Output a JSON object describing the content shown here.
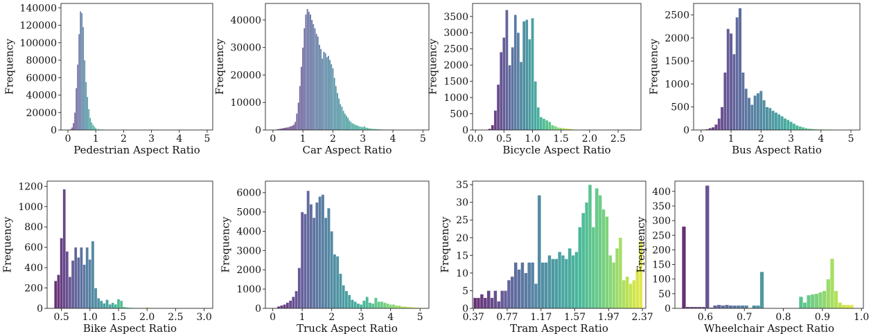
{
  "chart_data": [
    {
      "type": "bar",
      "xlabel": "Pedestrian Aspect Ratio",
      "ylabel": "Frequency",
      "xlim": [
        -0.25,
        5.2
      ],
      "ylim": [
        0,
        145000
      ],
      "xticks": [
        0,
        1,
        2,
        3,
        4,
        5
      ],
      "xtick_labels": [
        "0",
        "1",
        "2",
        "3",
        "4",
        "5"
      ],
      "yticks": [
        0,
        20000,
        40000,
        60000,
        80000,
        100000,
        120000,
        140000
      ],
      "ytick_labels": [
        "0",
        "20000",
        "40000",
        "60000",
        "80000",
        "100000",
        "120000",
        "140000"
      ],
      "x": [
        0.05,
        0.1,
        0.15,
        0.2,
        0.25,
        0.3,
        0.35,
        0.4,
        0.45,
        0.5,
        0.55,
        0.6,
        0.65,
        0.7,
        0.75,
        0.8,
        0.85,
        0.9,
        0.95,
        1.0,
        1.1,
        1.2,
        1.3,
        1.4,
        1.5
      ],
      "bin_width": 0.05,
      "values": [
        300,
        1000,
        3000,
        8000,
        20000,
        48000,
        75000,
        110000,
        136000,
        134000,
        118000,
        80000,
        55000,
        38000,
        24000,
        14000,
        9000,
        6000,
        4000,
        2500,
        1500,
        900,
        500,
        300,
        200
      ],
      "colormap": "viridis"
    },
    {
      "type": "bar",
      "xlabel": "Car Aspect Ratio",
      "ylabel": "Frequency",
      "xlim": [
        -0.25,
        5.2
      ],
      "ylim": [
        0,
        46000
      ],
      "xticks": [
        0,
        1,
        2,
        3,
        4,
        5
      ],
      "xtick_labels": [
        "0",
        "1",
        "2",
        "3",
        "4",
        "5"
      ],
      "yticks": [
        0,
        10000,
        20000,
        30000,
        40000
      ],
      "ytick_labels": [
        "0",
        "10000",
        "20000",
        "30000",
        "40000"
      ],
      "x": [
        0.05,
        0.1,
        0.15,
        0.2,
        0.25,
        0.3,
        0.35,
        0.4,
        0.45,
        0.5,
        0.55,
        0.6,
        0.65,
        0.7,
        0.75,
        0.8,
        0.85,
        0.9,
        0.95,
        1.0,
        1.05,
        1.1,
        1.15,
        1.2,
        1.25,
        1.3,
        1.35,
        1.4,
        1.45,
        1.5,
        1.55,
        1.6,
        1.65,
        1.7,
        1.75,
        1.8,
        1.85,
        1.9,
        1.95,
        2.0,
        2.05,
        2.1,
        2.15,
        2.2,
        2.25,
        2.3,
        2.35,
        2.4,
        2.45,
        2.5,
        2.55,
        2.6,
        2.65,
        2.7,
        2.75,
        2.8,
        2.85,
        2.9,
        2.95,
        3.0,
        3.05,
        3.1,
        3.15,
        3.2,
        3.25,
        3.3,
        3.35,
        3.4,
        3.45,
        3.5,
        3.55,
        3.6,
        3.65,
        3.7,
        3.75,
        3.8,
        3.85,
        3.9,
        3.95,
        4.0,
        4.05,
        4.1,
        4.15,
        4.2,
        4.25,
        4.3,
        4.35,
        4.4,
        4.45,
        4.5,
        4.55,
        4.6,
        4.65,
        4.7,
        4.75,
        4.8,
        4.85,
        4.9,
        4.95
      ],
      "bin_width": 0.05,
      "values": [
        100,
        200,
        300,
        400,
        500,
        600,
        700,
        800,
        900,
        1000,
        1200,
        1400,
        1600,
        2000,
        3000,
        6000,
        10000,
        16000,
        23000,
        30000,
        37000,
        42000,
        44000,
        43000,
        42000,
        40000,
        38500,
        37000,
        35000,
        34000,
        31000,
        29500,
        26000,
        28500,
        28000,
        26500,
        27000,
        25500,
        24000,
        22500,
        19000,
        16000,
        13500,
        11500,
        9500,
        8500,
        7000,
        6000,
        5200,
        4500,
        3500,
        3000,
        2500,
        2200,
        1900,
        1700,
        1500,
        1300,
        1200,
        1100,
        1400,
        900,
        800,
        700,
        600,
        500,
        450,
        400,
        350,
        300,
        280,
        260,
        240,
        220,
        200,
        180,
        160,
        150,
        140,
        130,
        120,
        110,
        100,
        90,
        80,
        70,
        60,
        50,
        40,
        30,
        30,
        30,
        20,
        20,
        20,
        20,
        10,
        10,
        10
      ],
      "colormap": "viridis"
    },
    {
      "type": "bar",
      "xlabel": "Bicycle Aspect Ratio",
      "ylabel": "Frequency",
      "xlim": [
        -0.05,
        2.9
      ],
      "ylim": [
        0,
        3900
      ],
      "xticks": [
        0.0,
        0.5,
        1.0,
        1.5,
        2.0,
        2.5
      ],
      "xtick_labels": [
        "0.0",
        "0.5",
        "1.0",
        "1.5",
        "2.0",
        "2.5"
      ],
      "yticks": [
        0,
        500,
        1000,
        1500,
        2000,
        2500,
        3000,
        3500
      ],
      "ytick_labels": [
        "0",
        "500",
        "1000",
        "1500",
        "2000",
        "2500",
        "3000",
        "3500"
      ],
      "x": [
        0.25,
        0.3,
        0.35,
        0.4,
        0.45,
        0.5,
        0.55,
        0.6,
        0.65,
        0.7,
        0.75,
        0.8,
        0.85,
        0.9,
        0.95,
        1.0,
        1.05,
        1.1,
        1.15,
        1.2,
        1.25,
        1.3,
        1.35,
        1.4,
        1.45,
        1.5,
        1.55,
        1.6,
        1.65,
        1.7
      ],
      "bin_width": 0.05,
      "values": [
        40,
        150,
        600,
        1400,
        2400,
        2850,
        3700,
        2000,
        2550,
        3550,
        3000,
        2100,
        3350,
        3400,
        2800,
        3450,
        1500,
        700,
        400,
        350,
        300,
        250,
        150,
        120,
        80,
        70,
        60,
        50,
        40,
        30
      ],
      "colormap": "viridis"
    },
    {
      "type": "bar",
      "xlabel": "Bus Aspect Ratio",
      "ylabel": "Frequency",
      "xlim": [
        -0.25,
        5.3
      ],
      "ylim": [
        0,
        2750
      ],
      "xticks": [
        0,
        1,
        2,
        3,
        4,
        5
      ],
      "xtick_labels": [
        "0",
        "1",
        "2",
        "3",
        "4",
        "5"
      ],
      "yticks": [
        0,
        500,
        1000,
        1500,
        2000,
        2500
      ],
      "ytick_labels": [
        "0",
        "500",
        "1000",
        "1500",
        "2000",
        "2500"
      ],
      "x": [
        0.1,
        0.2,
        0.3,
        0.4,
        0.5,
        0.6,
        0.7,
        0.8,
        0.9,
        1.0,
        1.1,
        1.2,
        1.3,
        1.4,
        1.5,
        1.6,
        1.7,
        1.8,
        1.9,
        2.0,
        2.1,
        2.2,
        2.3,
        2.4,
        2.5,
        2.6,
        2.7,
        2.8,
        2.9,
        3.0,
        3.1,
        3.2,
        3.3,
        3.4,
        3.5,
        3.6,
        3.7,
        3.8,
        3.9,
        4.0,
        4.1,
        4.2,
        4.3,
        4.4,
        4.5,
        4.6,
        4.7,
        4.8,
        4.9,
        5.0
      ],
      "bin_width": 0.1,
      "values": [
        10,
        20,
        40,
        60,
        120,
        250,
        500,
        1250,
        2200,
        2100,
        1650,
        2450,
        2650,
        1250,
        900,
        700,
        550,
        750,
        800,
        850,
        650,
        500,
        480,
        420,
        380,
        340,
        300,
        250,
        220,
        180,
        140,
        100,
        80,
        60,
        40,
        30,
        25,
        20,
        15,
        15,
        10,
        10,
        10,
        8,
        6,
        5,
        4,
        3,
        2,
        1
      ],
      "colormap": "viridis"
    },
    {
      "type": "bar",
      "xlabel": "Bike Aspect Ratio",
      "ylabel": "Frequency",
      "xlim": [
        0.25,
        3.15
      ],
      "ylim": [
        0,
        1250
      ],
      "xticks": [
        0.5,
        1.0,
        1.5,
        2.0,
        2.5,
        3.0
      ],
      "xtick_labels": [
        "0.5",
        "1.0",
        "1.5",
        "2.0",
        "2.5",
        "3.0"
      ],
      "yticks": [
        0,
        200,
        400,
        600,
        800,
        1000,
        1200
      ],
      "ytick_labels": [
        "0",
        "200",
        "400",
        "600",
        "800",
        "1000",
        "1200"
      ],
      "x": [
        0.4,
        0.45,
        0.5,
        0.55,
        0.6,
        0.65,
        0.7,
        0.75,
        0.8,
        0.85,
        0.9,
        0.95,
        1.0,
        1.05,
        1.1,
        1.15,
        1.2,
        1.25,
        1.3,
        1.35,
        1.4,
        1.45,
        1.5,
        1.55,
        1.6,
        1.65,
        1.7,
        1.75,
        1.8,
        1.85,
        1.9,
        1.95,
        2.0,
        2.05,
        2.1
      ],
      "bin_width": 0.05,
      "values": [
        270,
        330,
        690,
        1170,
        560,
        310,
        470,
        600,
        500,
        600,
        430,
        600,
        480,
        660,
        200,
        100,
        75,
        50,
        85,
        40,
        55,
        40,
        90,
        75,
        15,
        10,
        8,
        6,
        5,
        4,
        3,
        5,
        10,
        5,
        2
      ],
      "colormap": "viridis"
    },
    {
      "type": "bar",
      "xlabel": "Truck Aspect Ratio",
      "ylabel": "Frequency",
      "xlim": [
        -0.25,
        5.3
      ],
      "ylim": [
        0,
        6600
      ],
      "xticks": [
        0,
        1,
        2,
        3,
        4,
        5
      ],
      "xtick_labels": [
        "0",
        "1",
        "2",
        "3",
        "4",
        "5"
      ],
      "yticks": [
        0,
        1000,
        2000,
        3000,
        4000,
        5000,
        6000
      ],
      "ytick_labels": [
        "0",
        "1000",
        "2000",
        "3000",
        "4000",
        "5000",
        "6000"
      ],
      "x": [
        0.1,
        0.2,
        0.3,
        0.4,
        0.5,
        0.6,
        0.7,
        0.8,
        0.9,
        1.0,
        1.1,
        1.2,
        1.3,
        1.4,
        1.5,
        1.6,
        1.7,
        1.8,
        1.9,
        2.0,
        2.1,
        2.2,
        2.3,
        2.4,
        2.5,
        2.6,
        2.7,
        2.8,
        2.9,
        3.0,
        3.1,
        3.2,
        3.3,
        3.4,
        3.5,
        3.6,
        3.7,
        3.8,
        3.9,
        4.0,
        4.1,
        4.2,
        4.3,
        4.4,
        4.5,
        4.6,
        4.7,
        4.8,
        4.9
      ],
      "bin_width": 0.1,
      "values": [
        10,
        100,
        150,
        200,
        300,
        400,
        600,
        900,
        2100,
        5000,
        4900,
        6100,
        5400,
        4700,
        5500,
        5800,
        5900,
        4700,
        5200,
        4000,
        2800,
        2700,
        1800,
        1200,
        900,
        700,
        450,
        350,
        250,
        200,
        400,
        600,
        300,
        250,
        550,
        350,
        350,
        300,
        250,
        200,
        200,
        150,
        150,
        100,
        100,
        80,
        60,
        50,
        40
      ],
      "colormap": "viridis"
    },
    {
      "type": "bar",
      "xlabel": "Tram Aspect Ratio",
      "ylabel": "Frequency",
      "xlim": [
        0.36,
        2.41
      ],
      "ylim": [
        0,
        36
      ],
      "xticks": [
        0.37,
        0.77,
        1.17,
        1.57,
        1.97,
        2.37
      ],
      "xtick_labels": [
        "0.37",
        "0.77",
        "1.17",
        "1.57",
        "1.97",
        "2.37"
      ],
      "yticks": [
        0,
        5,
        10,
        15,
        20,
        25,
        30,
        35
      ],
      "ytick_labels": [
        "0",
        "5",
        "10",
        "15",
        "20",
        "25",
        "30",
        "35"
      ],
      "x": [
        0.39,
        0.43,
        0.47,
        0.51,
        0.55,
        0.59,
        0.63,
        0.67,
        0.71,
        0.75,
        0.79,
        0.83,
        0.87,
        0.91,
        0.95,
        0.99,
        1.03,
        1.07,
        1.11,
        1.15,
        1.19,
        1.23,
        1.27,
        1.31,
        1.35,
        1.39,
        1.43,
        1.47,
        1.51,
        1.55,
        1.59,
        1.63,
        1.67,
        1.71,
        1.75,
        1.79,
        1.83,
        1.87,
        1.91,
        1.95,
        1.99,
        2.03,
        2.07,
        2.11,
        2.15,
        2.19,
        2.23,
        2.27,
        2.31,
        2.35
      ],
      "bin_width": 0.04,
      "values": [
        3,
        3,
        4,
        3,
        5,
        3,
        5,
        2,
        5,
        5,
        8,
        9,
        13,
        11,
        13,
        10,
        13,
        13,
        7,
        32,
        13,
        13,
        15,
        14,
        14,
        16,
        15,
        14,
        17,
        15,
        16,
        23,
        27,
        30,
        35,
        23,
        34,
        32,
        28,
        26,
        15,
        13,
        17,
        20,
        8,
        9,
        7,
        8,
        11,
        19
      ],
      "colormap": "viridis"
    },
    {
      "type": "bar",
      "xlabel": "Wheelchair Aspect Ratio",
      "ylabel": "Frequency",
      "xlim": [
        0.522,
        1.005
      ],
      "ylim": [
        0,
        435
      ],
      "xticks": [
        0.6,
        0.7,
        0.8,
        0.9,
        1.0
      ],
      "xtick_labels": [
        "0.6",
        "0.7",
        "0.8",
        "0.9",
        "1.0"
      ],
      "yticks": [
        0,
        50,
        100,
        150,
        200,
        250,
        300,
        350,
        400
      ],
      "ytick_labels": [
        "0",
        "50",
        "100",
        "150",
        "200",
        "250",
        "300",
        "350",
        "400"
      ],
      "x": [
        0.545,
        0.555,
        0.565,
        0.575,
        0.585,
        0.595,
        0.605,
        0.615,
        0.625,
        0.635,
        0.645,
        0.655,
        0.665,
        0.675,
        0.685,
        0.695,
        0.705,
        0.715,
        0.725,
        0.735,
        0.745,
        0.755,
        0.765,
        0.775,
        0.785,
        0.795,
        0.805,
        0.815,
        0.825,
        0.835,
        0.845,
        0.855,
        0.865,
        0.875,
        0.885,
        0.895,
        0.905,
        0.915,
        0.925,
        0.935,
        0.945,
        0.955,
        0.965,
        0.975
      ],
      "bin_width": 0.01,
      "values": [
        280,
        5,
        5,
        5,
        5,
        5,
        420,
        3,
        10,
        12,
        10,
        12,
        10,
        10,
        10,
        10,
        10,
        2,
        10,
        10,
        125,
        0,
        0,
        0,
        0,
        0,
        0,
        0,
        0,
        0,
        40,
        20,
        45,
        48,
        50,
        55,
        60,
        100,
        170,
        60,
        20,
        12,
        12,
        12
      ],
      "colormap": "viridis"
    }
  ]
}
